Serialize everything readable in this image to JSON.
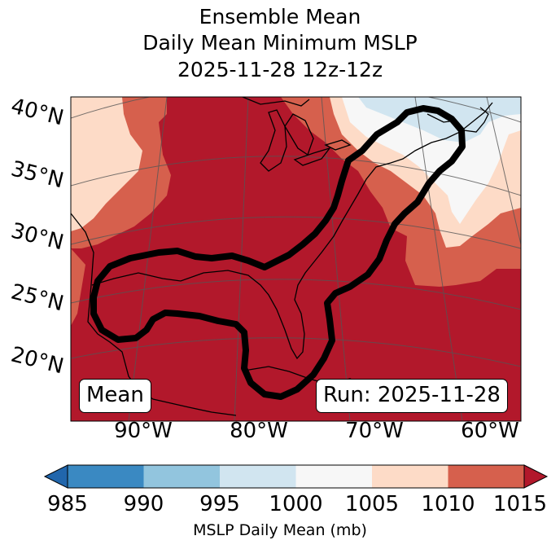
{
  "title": {
    "line1": "Ensemble Mean",
    "line2": "Daily Mean Minimum MSLP",
    "line3": "2025-11-28 12z-12z"
  },
  "map": {
    "lat_labels": [
      "40°N",
      "35°N",
      "30°N",
      "25°N",
      "20°N"
    ],
    "lon_labels": [
      "90°W",
      "80°W",
      "70°W",
      "60°W"
    ],
    "badge_left": "Mean",
    "badge_right": "Run: 2025-11-28",
    "fill_colors": {
      "lt_990": "#3a89c2",
      "990_995": "#92c5de",
      "995_1000": "#d1e5f0",
      "1000_1005": "#f7f7f7",
      "1005_1010": "#fddbc7",
      "1010_1015": "#d6604d",
      "gt_1015": "#b2182b"
    },
    "contour_color": "#000000"
  },
  "colorbar": {
    "ticks": [
      "985",
      "990",
      "995",
      "1000",
      "1005",
      "1010",
      "1015"
    ],
    "colors": [
      "#2166ac",
      "#3a89c2",
      "#92c5de",
      "#d1e5f0",
      "#f7f7f7",
      "#fddbc7",
      "#d6604d",
      "#b2182b"
    ],
    "label": "MSLP Daily Mean (mb)"
  }
}
